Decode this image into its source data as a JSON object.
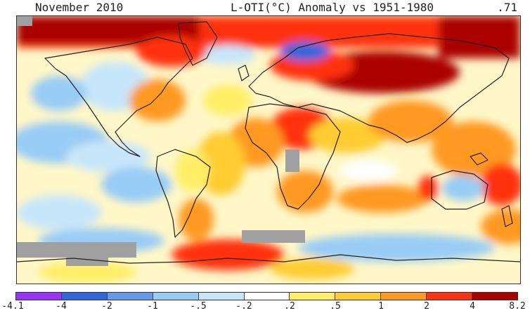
{
  "header": {
    "period": "November 2010",
    "title": "L-OTI(°C) Anomaly vs 1951-1980",
    "global_mean": ".71"
  },
  "legend": {
    "ticks": [
      "-4.1",
      "-4",
      "-2",
      "-1",
      "-.5",
      "-.2",
      ".2",
      ".5",
      "1",
      "2",
      "4",
      "8.2"
    ],
    "colors": [
      "#9933ff",
      "#3366dd",
      "#6699ee",
      "#99ccf5",
      "#c8e6fa",
      "#ffffff",
      "#ffee66",
      "#ffcc33",
      "#ff9922",
      "#ff3311",
      "#aa0000"
    ]
  },
  "map": {
    "projection": "equirectangular",
    "missing_data_color": "#a0a0a0"
  }
}
